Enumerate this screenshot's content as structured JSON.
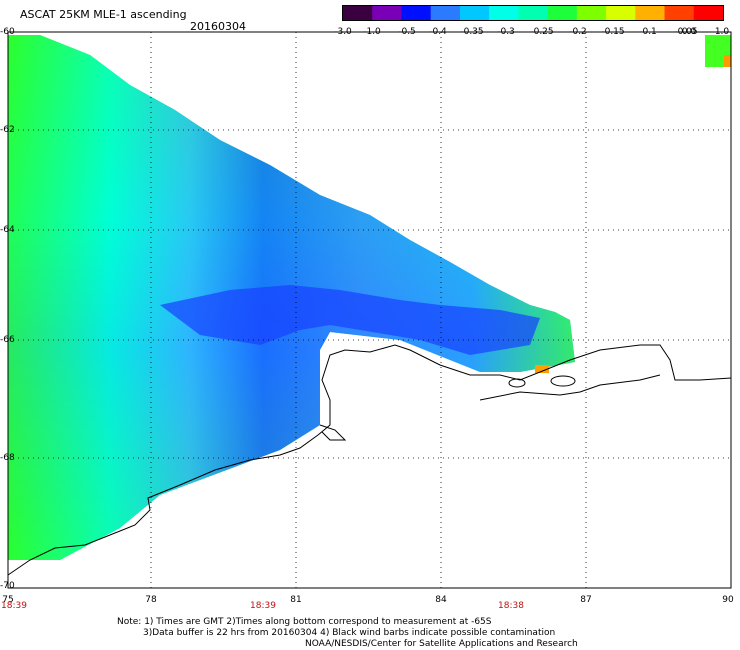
{
  "header": {
    "title": "ASCAT 25KM MLE-1 ascending",
    "date": "20160304"
  },
  "colorbar": {
    "tick_labels": [
      "-3.0",
      "-1.0",
      "-0.5",
      "-0.4",
      "-0.35",
      "-0.3",
      "-0.25",
      "-0.2",
      "-0.15",
      "-0.1",
      "-0.05",
      "0.0",
      "1.0"
    ],
    "colors": [
      "#3a0040",
      "#7a00b8",
      "#0010ff",
      "#2a7bff",
      "#00c8ff",
      "#00ffe8",
      "#00ffb0",
      "#1eff3c",
      "#7dff00",
      "#d8ff00",
      "#ffb000",
      "#ff4000",
      "#ff0000"
    ]
  },
  "map": {
    "region": "Antarctic coast",
    "lat_labels": [
      "-60",
      "-62",
      "-64",
      "-66",
      "-68",
      "-70"
    ],
    "lon_labels": [
      "75",
      "78",
      "81",
      "84",
      "87",
      "90"
    ],
    "pass_times": [
      "18:39",
      "18:39",
      "18:38"
    ],
    "land_color": "#ffffff",
    "coast_color": "#000000"
  },
  "notes": {
    "line1": "Note: 1) Times are GMT 2)Times along bottom correspond to measurement at -65S",
    "line2": "3)Data buffer is 22 hrs from 20160304 4) Black wind barbs indicate possible contamination",
    "line3": "NOAA/NESDIS/Center for Satellite Applications and Research"
  }
}
